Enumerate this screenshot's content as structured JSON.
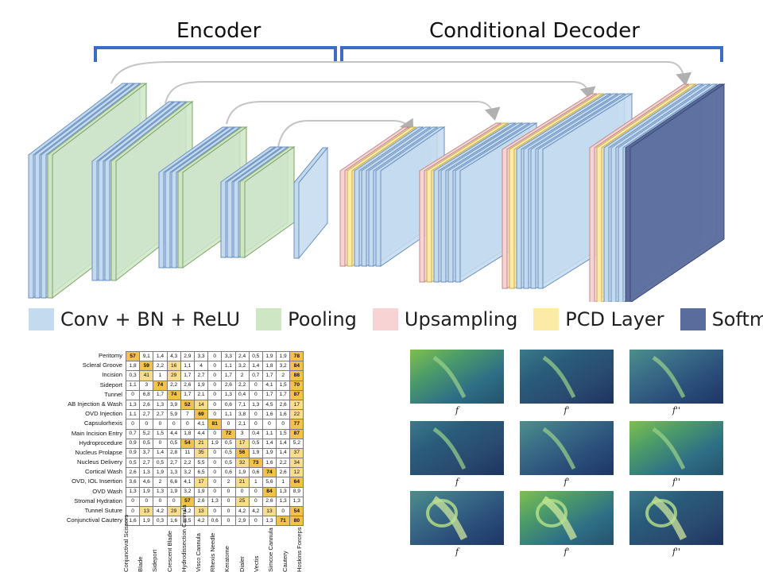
{
  "diagram": {
    "encoder_label": "Encoder",
    "decoder_label": "Conditional Decoder",
    "legend": [
      {
        "label": "Conv + BN + ReLU",
        "color": "#c4daee"
      },
      {
        "label": "Pooling",
        "color": "#cfe6c4"
      },
      {
        "label": "Upsampling",
        "color": "#f7d3d3"
      },
      {
        "label": "PCD Layer",
        "color": "#fbeba6"
      },
      {
        "label": "Softmax",
        "color": "#5a6c9c"
      }
    ]
  },
  "matrix": {
    "rows": [
      "Peritomy",
      "Scleral Groove",
      "Incision",
      "Sideport",
      "Tunnel",
      "AB Injection & Wash",
      "OVD Injection",
      "Capsulorhexis",
      "Main Incision Entry",
      "Hydroprocedure",
      "Nucleus Prolapse",
      "Nucleus Delivery",
      "Cortical Wash",
      "OVD, IOL Insertion",
      "OVD Wash",
      "Stromal Hydration",
      "Tunnel Suture",
      "Conjunctival Cautery"
    ],
    "columns": [
      "Conjunctival Scissors",
      "Blade",
      "Sideport",
      "Crescent Blade",
      "Hydrodissection Cannula",
      "Visco Cannula",
      "Rhexis Needle",
      "Keratome",
      "Dialer",
      "Vectis",
      "Simcoe Cannula",
      "Cautery",
      "Hoskins Forceps"
    ],
    "values": [
      [
        "57",
        "9,1",
        "1,4",
        "4,3",
        "2,9",
        "3,3",
        "0",
        "3,3",
        "2,4",
        "0,5",
        "1,9",
        "1,9",
        "78"
      ],
      [
        "1,8",
        "59",
        "2,2",
        "16",
        "1,1",
        "4",
        "0",
        "1,1",
        "3,2",
        "1,4",
        "1,8",
        "3,2",
        "84"
      ],
      [
        "0,3",
        "41",
        "1",
        "29",
        "1,7",
        "2,7",
        "0",
        "1,7",
        "2",
        "0,7",
        "1,7",
        "2",
        "88"
      ],
      [
        "1,1",
        "3",
        "74",
        "2,2",
        "2,6",
        "1,9",
        "0",
        "2,6",
        "2,2",
        "0",
        "4,1",
        "1,5",
        "70"
      ],
      [
        "0",
        "6,8",
        "1,7",
        "74",
        "1,7",
        "2,1",
        "0",
        "1,3",
        "0,4",
        "0",
        "1,7",
        "1,7",
        "87"
      ],
      [
        "1,3",
        "2,6",
        "1,3",
        "3,9",
        "52",
        "14",
        "0",
        "0,6",
        "7,1",
        "1,3",
        "4,5",
        "2,6",
        "17"
      ],
      [
        "1,1",
        "2,7",
        "2,7",
        "5,9",
        "7",
        "69",
        "0",
        "1,1",
        "3,8",
        "0",
        "1,6",
        "1,6",
        "22"
      ],
      [
        "0",
        "0",
        "0",
        "0",
        "0",
        "4,1",
        "81",
        "0",
        "2,1",
        "0",
        "0",
        "0",
        "77"
      ],
      [
        "0,7",
        "5,2",
        "1,5",
        "4,4",
        "1,8",
        "4,4",
        "0",
        "72",
        "3",
        "0,4",
        "1,1",
        "1,5",
        "87"
      ],
      [
        "0,9",
        "0,5",
        "0",
        "0,5",
        "54",
        "21",
        "1,9",
        "0,5",
        "17",
        "0,5",
        "1,4",
        "1,4",
        "5,2"
      ],
      [
        "0,9",
        "3,7",
        "1,4",
        "2,8",
        "11",
        "35",
        "0",
        "0,5",
        "56",
        "1,9",
        "1,9",
        "1,4",
        "37"
      ],
      [
        "0,5",
        "2,7",
        "0,5",
        "2,7",
        "2,2",
        "5,5",
        "0",
        "0,5",
        "32",
        "73",
        "1,6",
        "2,2",
        "34"
      ],
      [
        "2,6",
        "1,3",
        "1,9",
        "1,3",
        "3,2",
        "6,5",
        "0",
        "0,6",
        "1,9",
        "0,6",
        "74",
        "2,6",
        "12"
      ],
      [
        "3,6",
        "4,6",
        "2",
        "6,6",
        "4,1",
        "17",
        "0",
        "2",
        "21",
        "1",
        "5,6",
        "1",
        "64"
      ],
      [
        "1,3",
        "1,9",
        "1,3",
        "1,9",
        "3,2",
        "1,9",
        "0",
        "0",
        "0",
        "0",
        "84",
        "1,3",
        "8,9"
      ],
      [
        "0",
        "0",
        "0",
        "0",
        "57",
        "2,6",
        "1,3",
        "0",
        "25",
        "0",
        "2,6",
        "1,3",
        "1,3"
      ],
      [
        "0",
        "13",
        "4,2",
        "29",
        "4,2",
        "13",
        "0",
        "0",
        "4,2",
        "4,2",
        "13",
        "0",
        "54"
      ],
      [
        "1,6",
        "1,9",
        "0,3",
        "1,6",
        "3,5",
        "4,2",
        "0,6",
        "0",
        "2,9",
        "0",
        "1,3",
        "71",
        "80"
      ]
    ],
    "highlight_min": 50,
    "mid_min": 12
  },
  "features": {
    "labels": [
      "f",
      "f'",
      "f''"
    ],
    "rows": 3
  }
}
